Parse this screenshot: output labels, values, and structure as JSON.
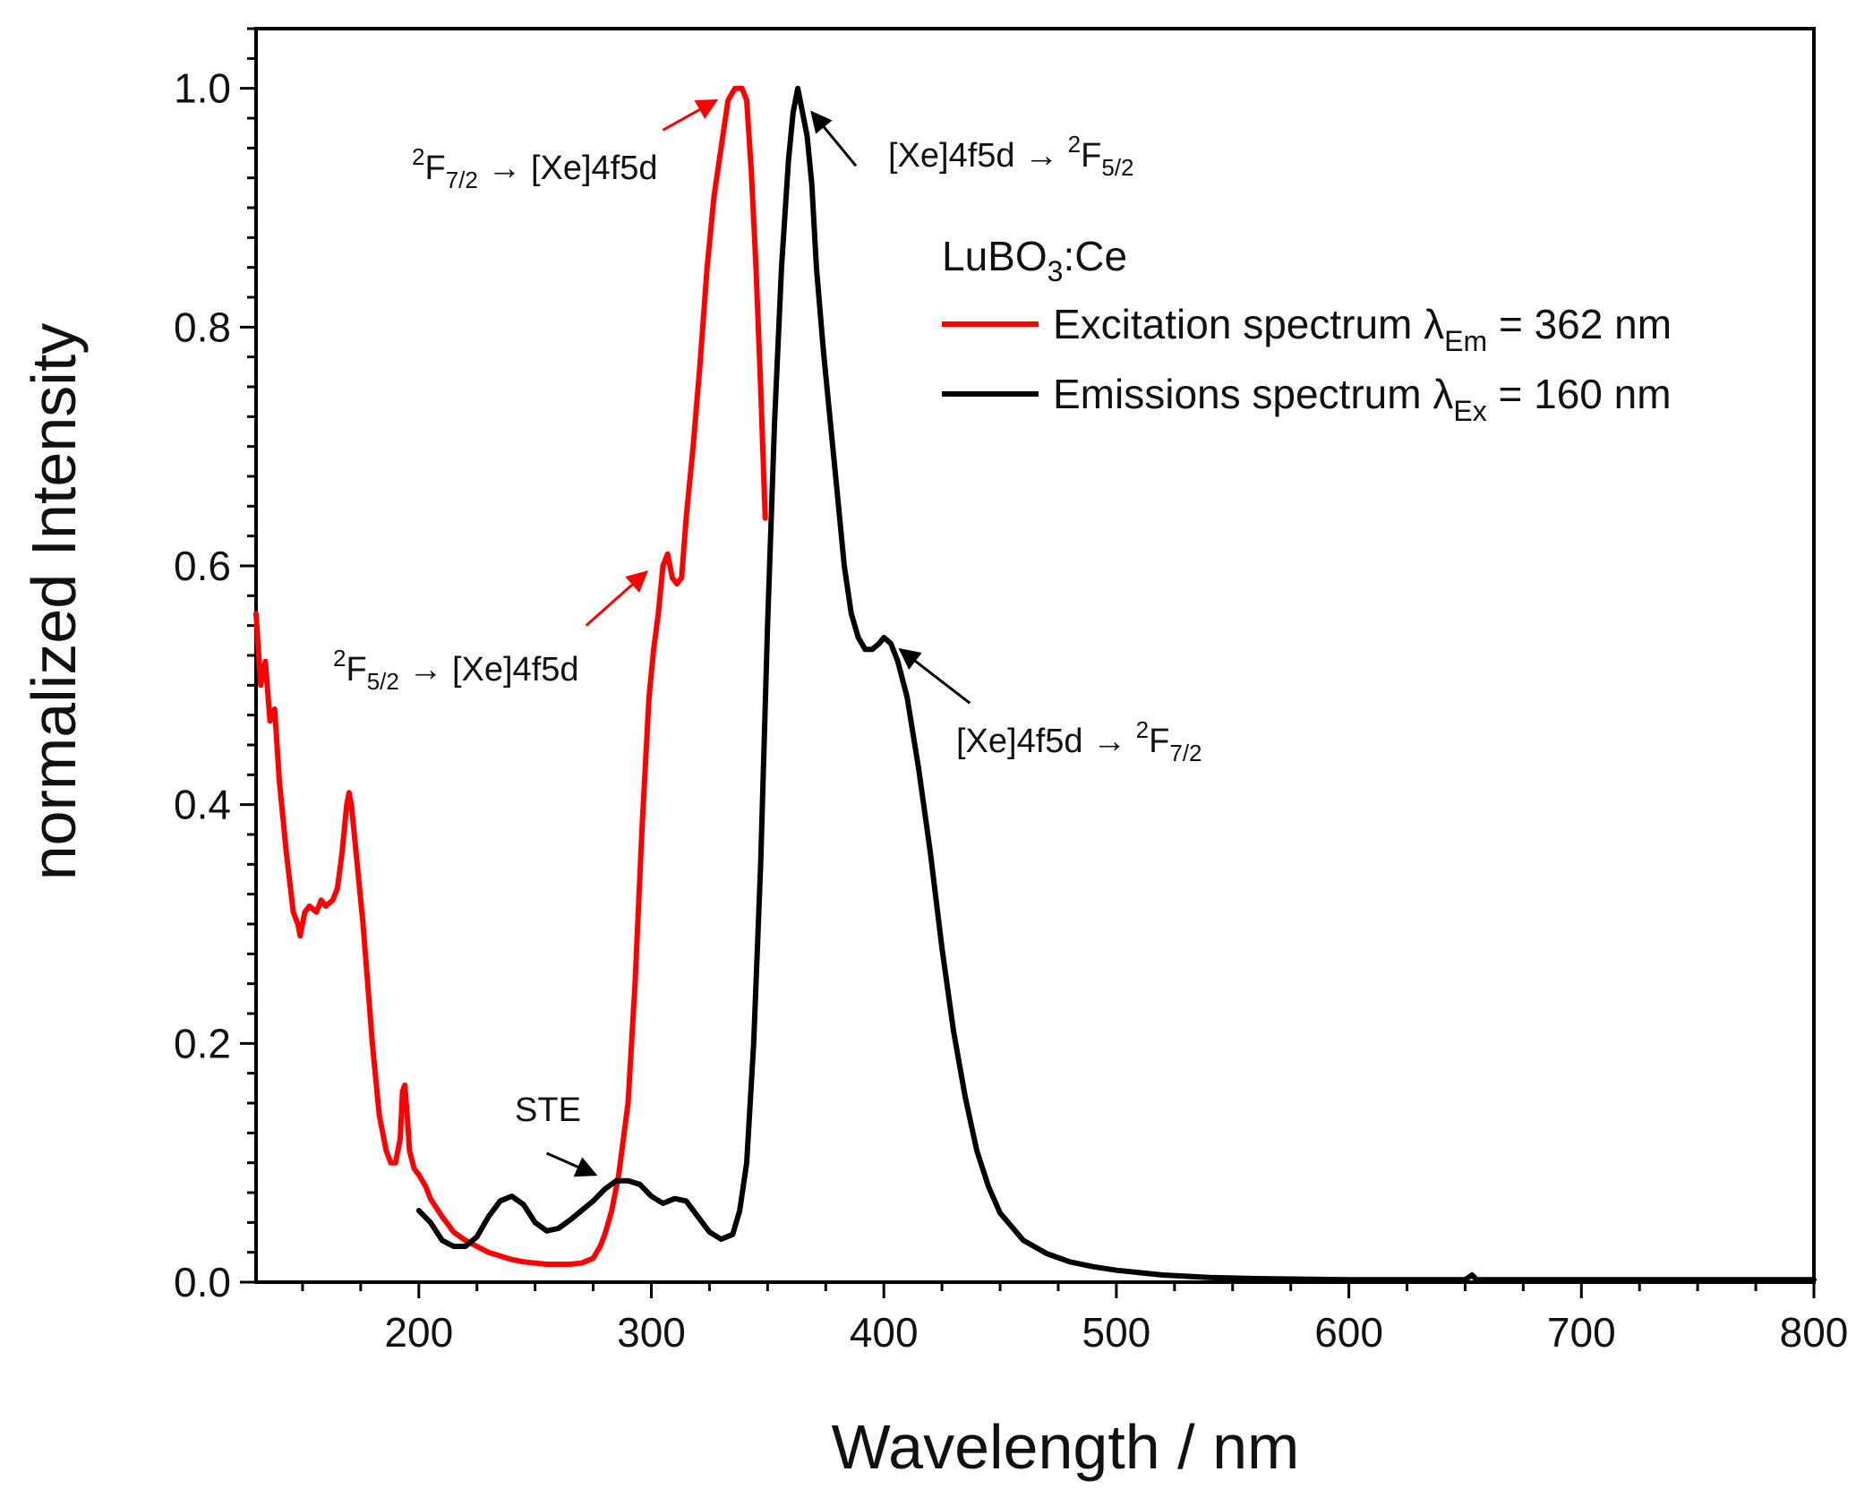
{
  "chart_data": {
    "type": "line",
    "xlabel": "Wavelength / nm",
    "ylabel": "normalized Intensity",
    "xlim": [
      130,
      800
    ],
    "ylim": [
      0,
      1.05
    ],
    "x_ticks": [
      "200",
      "300",
      "400",
      "500",
      "600",
      "700",
      "800"
    ],
    "y_ticks": [
      "0.0",
      "0.2",
      "0.4",
      "0.6",
      "0.8",
      "1.0"
    ],
    "x_tick_values": [
      200,
      300,
      400,
      500,
      600,
      700,
      800
    ],
    "y_tick_values": [
      0,
      0.2,
      0.4,
      0.6,
      0.8,
      1.0
    ],
    "grid": false,
    "legend_position": "top-right",
    "legend": {
      "title": "LuBO",
      "title_sub": "3",
      "title_suffix": ":Ce",
      "excitation_prefix": "Excitation spectrum λ",
      "excitation_sub": "Em",
      "excitation_suffix": " = 362 nm",
      "emission_prefix": "Emissions spectrum λ",
      "emission_sub": "Ex",
      "emission_suffix": " = 160 nm"
    },
    "series": [
      {
        "name": "Excitation spectrum λEm = 362 nm",
        "color": "#ff0000",
        "points": [
          [
            130,
            0.56
          ],
          [
            132,
            0.5
          ],
          [
            134,
            0.52
          ],
          [
            136,
            0.47
          ],
          [
            138,
            0.48
          ],
          [
            140,
            0.42
          ],
          [
            143,
            0.36
          ],
          [
            146,
            0.31
          ],
          [
            148,
            0.3
          ],
          [
            149,
            0.29
          ],
          [
            151,
            0.31
          ],
          [
            153,
            0.315
          ],
          [
            156,
            0.31
          ],
          [
            158,
            0.32
          ],
          [
            160,
            0.315
          ],
          [
            163,
            0.32
          ],
          [
            165,
            0.33
          ],
          [
            167,
            0.36
          ],
          [
            169,
            0.4
          ],
          [
            170,
            0.41
          ],
          [
            171,
            0.4
          ],
          [
            173,
            0.36
          ],
          [
            176,
            0.3
          ],
          [
            178,
            0.25
          ],
          [
            180,
            0.2
          ],
          [
            183,
            0.14
          ],
          [
            186,
            0.11
          ],
          [
            188,
            0.1
          ],
          [
            190,
            0.1
          ],
          [
            192,
            0.12
          ],
          [
            193,
            0.16
          ],
          [
            194,
            0.165
          ],
          [
            195,
            0.14
          ],
          [
            196,
            0.11
          ],
          [
            198,
            0.095
          ],
          [
            200,
            0.09
          ],
          [
            203,
            0.08
          ],
          [
            205,
            0.07
          ],
          [
            210,
            0.055
          ],
          [
            215,
            0.042
          ],
          [
            220,
            0.035
          ],
          [
            225,
            0.03
          ],
          [
            230,
            0.025
          ],
          [
            235,
            0.022
          ],
          [
            240,
            0.019
          ],
          [
            245,
            0.017
          ],
          [
            250,
            0.016
          ],
          [
            255,
            0.015
          ],
          [
            260,
            0.015
          ],
          [
            265,
            0.015
          ],
          [
            270,
            0.016
          ],
          [
            275,
            0.02
          ],
          [
            278,
            0.03
          ],
          [
            280,
            0.04
          ],
          [
            283,
            0.06
          ],
          [
            286,
            0.09
          ],
          [
            290,
            0.15
          ],
          [
            293,
            0.25
          ],
          [
            296,
            0.38
          ],
          [
            299,
            0.49
          ],
          [
            301,
            0.53
          ],
          [
            303,
            0.56
          ],
          [
            305,
            0.6
          ],
          [
            307,
            0.61
          ],
          [
            309,
            0.59
          ],
          [
            311,
            0.585
          ],
          [
            313,
            0.59
          ],
          [
            315,
            0.64
          ],
          [
            318,
            0.7
          ],
          [
            321,
            0.77
          ],
          [
            324,
            0.85
          ],
          [
            327,
            0.91
          ],
          [
            330,
            0.95
          ],
          [
            333,
            0.99
          ],
          [
            336,
            1.0
          ],
          [
            339,
            1.0
          ],
          [
            341,
            0.99
          ],
          [
            343,
            0.93
          ],
          [
            345,
            0.85
          ],
          [
            347,
            0.75
          ],
          [
            349,
            0.64
          ]
        ]
      },
      {
        "name": "Emissions spectrum λEx = 160 nm",
        "color": "#000000",
        "points": [
          [
            200,
            0.06
          ],
          [
            205,
            0.05
          ],
          [
            210,
            0.035
          ],
          [
            215,
            0.03
          ],
          [
            220,
            0.03
          ],
          [
            225,
            0.038
          ],
          [
            230,
            0.055
          ],
          [
            235,
            0.068
          ],
          [
            240,
            0.072
          ],
          [
            245,
            0.065
          ],
          [
            250,
            0.05
          ],
          [
            255,
            0.043
          ],
          [
            260,
            0.045
          ],
          [
            265,
            0.052
          ],
          [
            270,
            0.06
          ],
          [
            275,
            0.068
          ],
          [
            280,
            0.078
          ],
          [
            285,
            0.085
          ],
          [
            290,
            0.085
          ],
          [
            295,
            0.082
          ],
          [
            300,
            0.072
          ],
          [
            305,
            0.066
          ],
          [
            310,
            0.07
          ],
          [
            315,
            0.068
          ],
          [
            320,
            0.055
          ],
          [
            325,
            0.042
          ],
          [
            330,
            0.036
          ],
          [
            335,
            0.04
          ],
          [
            338,
            0.06
          ],
          [
            341,
            0.1
          ],
          [
            344,
            0.2
          ],
          [
            347,
            0.35
          ],
          [
            350,
            0.55
          ],
          [
            353,
            0.72
          ],
          [
            356,
            0.85
          ],
          [
            359,
            0.94
          ],
          [
            361,
            0.98
          ],
          [
            363,
            1.0
          ],
          [
            365,
            0.98
          ],
          [
            367,
            0.96
          ],
          [
            369,
            0.92
          ],
          [
            371,
            0.85
          ],
          [
            374,
            0.78
          ],
          [
            377,
            0.72
          ],
          [
            380,
            0.66
          ],
          [
            383,
            0.6
          ],
          [
            386,
            0.56
          ],
          [
            389,
            0.54
          ],
          [
            392,
            0.53
          ],
          [
            395,
            0.53
          ],
          [
            398,
            0.535
          ],
          [
            400,
            0.54
          ],
          [
            403,
            0.535
          ],
          [
            406,
            0.52
          ],
          [
            410,
            0.49
          ],
          [
            415,
            0.43
          ],
          [
            420,
            0.36
          ],
          [
            425,
            0.28
          ],
          [
            430,
            0.21
          ],
          [
            435,
            0.155
          ],
          [
            440,
            0.11
          ],
          [
            445,
            0.08
          ],
          [
            450,
            0.058
          ],
          [
            460,
            0.035
          ],
          [
            470,
            0.024
          ],
          [
            480,
            0.017
          ],
          [
            490,
            0.013
          ],
          [
            500,
            0.01
          ],
          [
            520,
            0.006
          ],
          [
            540,
            0.004
          ],
          [
            560,
            0.003
          ],
          [
            600,
            0.002
          ],
          [
            650,
            0.002
          ],
          [
            653,
            0.006
          ],
          [
            655,
            0.002
          ],
          [
            700,
            0.002
          ],
          [
            750,
            0.002
          ],
          [
            800,
            0.002
          ]
        ]
      }
    ],
    "annotations": [
      {
        "id": "a1",
        "pre_sup": "2",
        "base": "F",
        "base_sub": "7/2",
        "arrow_text": " → [Xe]4f5d",
        "tail": [
          305,
          0.965
        ],
        "head": [
          328,
          0.99
        ],
        "color": "#ff0000"
      },
      {
        "id": "a2",
        "text": "[Xe]4f5d → ",
        "post_sup": "2",
        "post_base": "F",
        "post_sub": "5/2",
        "tail": [
          388,
          0.935
        ],
        "head": [
          369,
          0.98
        ],
        "color": "#000000"
      },
      {
        "id": "a3",
        "pre_sup": "2",
        "base": "F",
        "base_sub": "5/2",
        "arrow_text": " → [Xe]4f5d",
        "tail": [
          272,
          0.55
        ],
        "head": [
          298,
          0.595
        ],
        "color": "#ff0000"
      },
      {
        "id": "a4",
        "text": "[Xe]4f5d → ",
        "post_sup": "2",
        "post_base": "F",
        "post_sub": "7/2",
        "tail": [
          437,
          0.485
        ],
        "head": [
          407,
          0.53
        ],
        "color": "#000000"
      },
      {
        "id": "a5",
        "text": "STE",
        "tail": [
          255,
          0.108
        ],
        "head": [
          276,
          0.09
        ],
        "color": "#000000"
      }
    ]
  }
}
